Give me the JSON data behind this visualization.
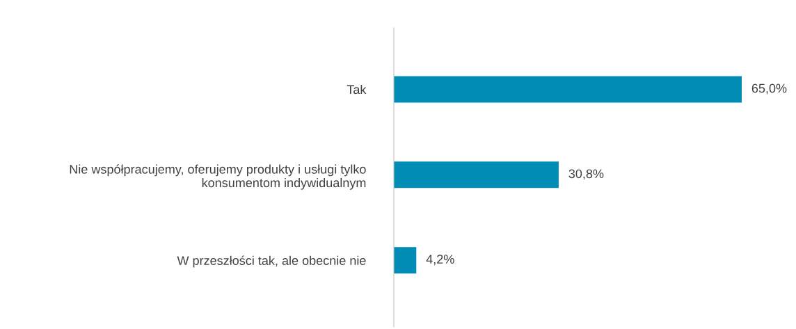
{
  "chart_data": {
    "type": "bar",
    "orientation": "horizontal",
    "categories": [
      "Tak",
      "Nie współpracujemy, oferujemy produkty i usługi tylko\nkonsumentom indywidualnym",
      "W przeszłości tak, ale obecnie nie"
    ],
    "values": [
      65.0,
      30.8,
      4.2
    ],
    "value_labels": [
      "65,0%",
      "30,8%",
      "4,2%"
    ],
    "color": "#008cb4",
    "tick_labels": "y"
  }
}
